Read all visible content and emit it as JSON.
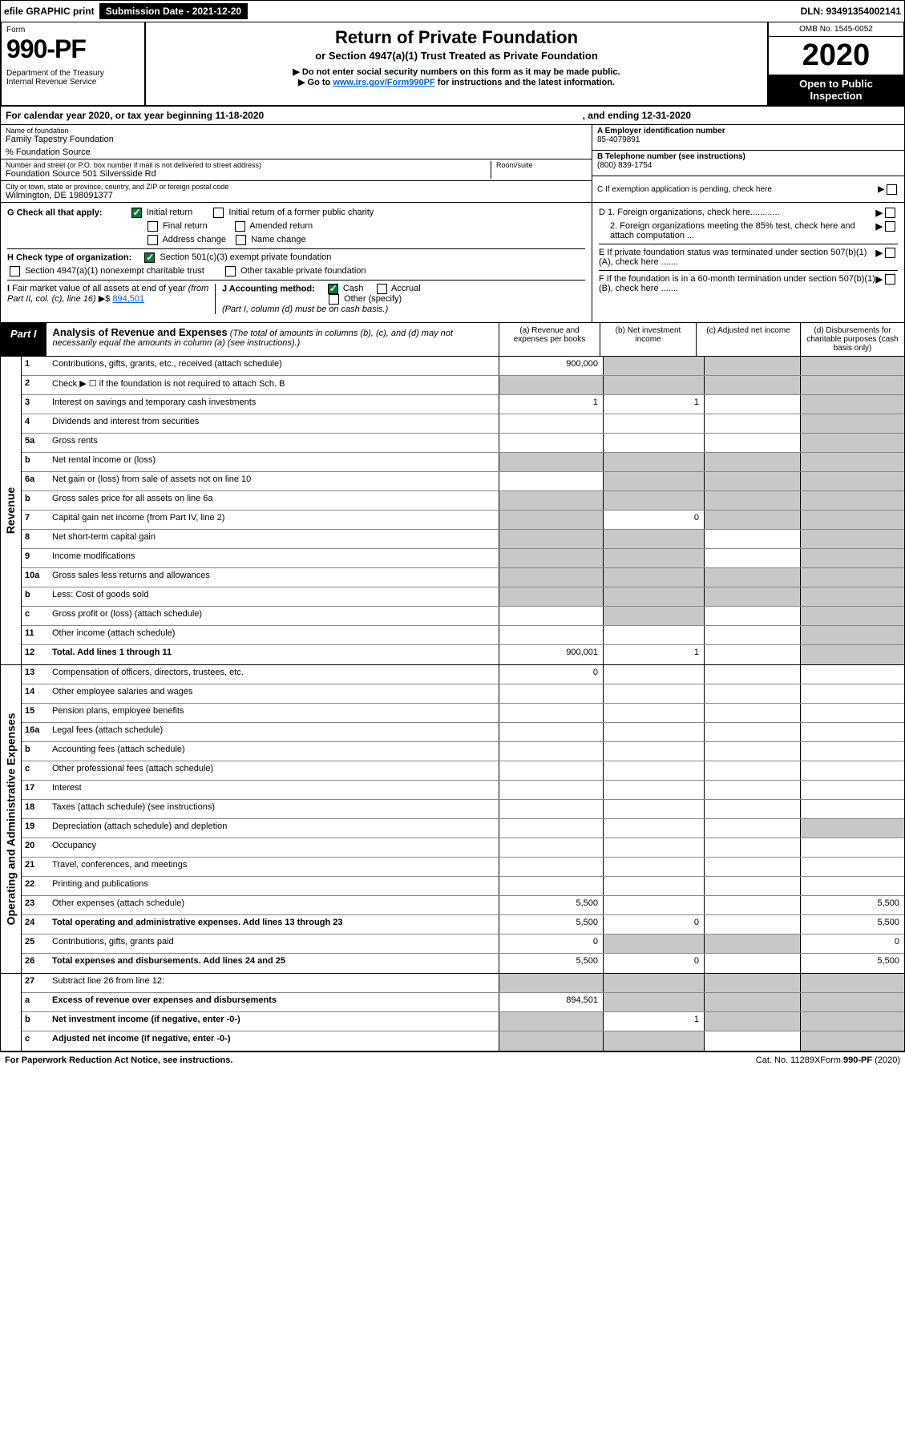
{
  "top": {
    "efile": "efile GRAPHIC print",
    "submission": "Submission Date - 2021-12-20",
    "dln": "DLN: 93491354002141"
  },
  "header": {
    "form_label": "Form",
    "form_num": "990-PF",
    "dept": "Department of the Treasury\nInternal Revenue Service",
    "title": "Return of Private Foundation",
    "subtitle": "or Section 4947(a)(1) Trust Treated as Private Foundation",
    "note1": "▶ Do not enter social security numbers on this form as it may be made public.",
    "note2_pre": "▶ Go to ",
    "note2_link": "www.irs.gov/Form990PF",
    "note2_post": " for instructions and the latest information.",
    "omb": "OMB No. 1545-0052",
    "year": "2020",
    "open": "Open to Public Inspection"
  },
  "year_line": {
    "text": "For calendar year 2020, or tax year beginning 11-18-2020",
    "ending": ", and ending 12-31-2020"
  },
  "info": {
    "name_label": "Name of foundation",
    "name": "Family Tapestry Foundation",
    "co": "% Foundation Source",
    "addr_label": "Number and street (or P.O. box number if mail is not delivered to street address)",
    "addr": "Foundation Source 501 Silversside Rd",
    "room_label": "Room/suite",
    "city_label": "City or town, state or province, country, and ZIP or foreign postal code",
    "city": "Wilmington, DE  198091377",
    "ein_label": "A Employer identification number",
    "ein": "85-4079891",
    "phone_label": "B Telephone number (see instructions)",
    "phone": "(800) 839-1754",
    "c_label": "C If exemption application is pending, check here"
  },
  "checks": {
    "g_label": "G Check all that apply:",
    "g_opts": [
      "Initial return",
      "Initial return of a former public charity",
      "Final return",
      "Amended return",
      "Address change",
      "Name change"
    ],
    "g_checked": [
      true,
      false,
      false,
      false,
      false,
      false
    ],
    "h_label": "H Check type of organization:",
    "h_opts": [
      "Section 501(c)(3) exempt private foundation",
      "Section 4947(a)(1) nonexempt charitable trust",
      "Other taxable private foundation"
    ],
    "h_checked": [
      true,
      false,
      false
    ],
    "i_label": "I Fair market value of all assets at end of year (from Part II, col. (c), line 16) ▶$",
    "i_val": "894,501",
    "j_label": "J Accounting method:",
    "j_opts": [
      "Cash",
      "Accrual",
      "Other (specify)"
    ],
    "j_checked": [
      true,
      false,
      false
    ],
    "j_note": "(Part I, column (d) must be on cash basis.)",
    "d1": "D 1. Foreign organizations, check here............",
    "d2": "2. Foreign organizations meeting the 85% test, check here and attach computation ...",
    "e": "E  If private foundation status was terminated under section 507(b)(1)(A), check here .......",
    "f": "F  If the foundation is in a 60-month termination under section 507(b)(1)(B), check here .......",
    "arrow": "▶"
  },
  "part1": {
    "badge": "Part I",
    "title": "Analysis of Revenue and Expenses",
    "title_note": " (The total of amounts in columns (b), (c), and (d) may not necessarily equal the amounts in column (a) (see instructions).)",
    "cols": [
      "(a)   Revenue and expenses per books",
      "(b)   Net investment income",
      "(c)   Adjusted net income",
      "(d)   Disbursements for charitable purposes (cash basis only)"
    ]
  },
  "revenue_rows": [
    {
      "n": "1",
      "t": "Contributions, gifts, grants, etc., received (attach schedule)",
      "a": "900,000",
      "b": "",
      "c": "",
      "d": "",
      "grey": [
        false,
        true,
        true,
        true
      ]
    },
    {
      "n": "2",
      "t": "Check ▶ ☐ if the foundation is not required to attach Sch. B",
      "a": "",
      "b": "",
      "c": "",
      "d": "",
      "grey": [
        true,
        true,
        true,
        true
      ],
      "bold_not": true
    },
    {
      "n": "3",
      "t": "Interest on savings and temporary cash investments",
      "a": "1",
      "b": "1",
      "c": "",
      "d": "",
      "grey": [
        false,
        false,
        false,
        true
      ]
    },
    {
      "n": "4",
      "t": "Dividends and interest from securities",
      "a": "",
      "b": "",
      "c": "",
      "d": "",
      "grey": [
        false,
        false,
        false,
        true
      ]
    },
    {
      "n": "5a",
      "t": "Gross rents",
      "a": "",
      "b": "",
      "c": "",
      "d": "",
      "grey": [
        false,
        false,
        false,
        true
      ]
    },
    {
      "n": "b",
      "t": "Net rental income or (loss)",
      "a": "",
      "b": "",
      "c": "",
      "d": "",
      "grey": [
        true,
        true,
        true,
        true
      ]
    },
    {
      "n": "6a",
      "t": "Net gain or (loss) from sale of assets not on line 10",
      "a": "",
      "b": "",
      "c": "",
      "d": "",
      "grey": [
        false,
        true,
        true,
        true
      ]
    },
    {
      "n": "b",
      "t": "Gross sales price for all assets on line 6a",
      "a": "",
      "b": "",
      "c": "",
      "d": "",
      "grey": [
        true,
        true,
        true,
        true
      ]
    },
    {
      "n": "7",
      "t": "Capital gain net income (from Part IV, line 2)",
      "a": "",
      "b": "0",
      "c": "",
      "d": "",
      "grey": [
        true,
        false,
        true,
        true
      ]
    },
    {
      "n": "8",
      "t": "Net short-term capital gain",
      "a": "",
      "b": "",
      "c": "",
      "d": "",
      "grey": [
        true,
        true,
        false,
        true
      ]
    },
    {
      "n": "9",
      "t": "Income modifications",
      "a": "",
      "b": "",
      "c": "",
      "d": "",
      "grey": [
        true,
        true,
        false,
        true
      ]
    },
    {
      "n": "10a",
      "t": "Gross sales less returns and allowances",
      "a": "",
      "b": "",
      "c": "",
      "d": "",
      "grey": [
        true,
        true,
        true,
        true
      ]
    },
    {
      "n": "b",
      "t": "Less: Cost of goods sold",
      "a": "",
      "b": "",
      "c": "",
      "d": "",
      "grey": [
        true,
        true,
        true,
        true
      ]
    },
    {
      "n": "c",
      "t": "Gross profit or (loss) (attach schedule)",
      "a": "",
      "b": "",
      "c": "",
      "d": "",
      "grey": [
        false,
        true,
        false,
        true
      ]
    },
    {
      "n": "11",
      "t": "Other income (attach schedule)",
      "a": "",
      "b": "",
      "c": "",
      "d": "",
      "grey": [
        false,
        false,
        false,
        true
      ]
    },
    {
      "n": "12",
      "t": "Total. Add lines 1 through 11",
      "a": "900,001",
      "b": "1",
      "c": "",
      "d": "",
      "grey": [
        false,
        false,
        false,
        true
      ],
      "bold": true
    }
  ],
  "expense_rows": [
    {
      "n": "13",
      "t": "Compensation of officers, directors, trustees, etc.",
      "a": "0",
      "b": "",
      "c": "",
      "d": ""
    },
    {
      "n": "14",
      "t": "Other employee salaries and wages",
      "a": "",
      "b": "",
      "c": "",
      "d": ""
    },
    {
      "n": "15",
      "t": "Pension plans, employee benefits",
      "a": "",
      "b": "",
      "c": "",
      "d": ""
    },
    {
      "n": "16a",
      "t": "Legal fees (attach schedule)",
      "a": "",
      "b": "",
      "c": "",
      "d": ""
    },
    {
      "n": "b",
      "t": "Accounting fees (attach schedule)",
      "a": "",
      "b": "",
      "c": "",
      "d": ""
    },
    {
      "n": "c",
      "t": "Other professional fees (attach schedule)",
      "a": "",
      "b": "",
      "c": "",
      "d": ""
    },
    {
      "n": "17",
      "t": "Interest",
      "a": "",
      "b": "",
      "c": "",
      "d": ""
    },
    {
      "n": "18",
      "t": "Taxes (attach schedule) (see instructions)",
      "a": "",
      "b": "",
      "c": "",
      "d": ""
    },
    {
      "n": "19",
      "t": "Depreciation (attach schedule) and depletion",
      "a": "",
      "b": "",
      "c": "",
      "d": "",
      "grey": [
        false,
        false,
        false,
        true
      ]
    },
    {
      "n": "20",
      "t": "Occupancy",
      "a": "",
      "b": "",
      "c": "",
      "d": ""
    },
    {
      "n": "21",
      "t": "Travel, conferences, and meetings",
      "a": "",
      "b": "",
      "c": "",
      "d": ""
    },
    {
      "n": "22",
      "t": "Printing and publications",
      "a": "",
      "b": "",
      "c": "",
      "d": ""
    },
    {
      "n": "23",
      "t": "Other expenses (attach schedule)",
      "a": "5,500",
      "b": "",
      "c": "",
      "d": "5,500"
    },
    {
      "n": "24",
      "t": "Total operating and administrative expenses. Add lines 13 through 23",
      "a": "5,500",
      "b": "0",
      "c": "",
      "d": "5,500",
      "bold": true
    },
    {
      "n": "25",
      "t": "Contributions, gifts, grants paid",
      "a": "0",
      "b": "",
      "c": "",
      "d": "0",
      "grey": [
        false,
        true,
        true,
        false
      ]
    },
    {
      "n": "26",
      "t": "Total expenses and disbursements. Add lines 24 and 25",
      "a": "5,500",
      "b": "0",
      "c": "",
      "d": "5,500",
      "bold": true
    }
  ],
  "bottom_rows": [
    {
      "n": "27",
      "t": "Subtract line 26 from line 12:",
      "a": "",
      "b": "",
      "c": "",
      "d": "",
      "grey": [
        true,
        true,
        true,
        true
      ]
    },
    {
      "n": "a",
      "t": "Excess of revenue over expenses and disbursements",
      "a": "894,501",
      "b": "",
      "c": "",
      "d": "",
      "grey": [
        false,
        true,
        true,
        true
      ],
      "bold": true
    },
    {
      "n": "b",
      "t": "Net investment income (if negative, enter -0-)",
      "a": "",
      "b": "1",
      "c": "",
      "d": "",
      "grey": [
        true,
        false,
        true,
        true
      ],
      "bold": true
    },
    {
      "n": "c",
      "t": "Adjusted net income (if negative, enter -0-)",
      "a": "",
      "b": "",
      "c": "",
      "d": "",
      "grey": [
        true,
        true,
        false,
        true
      ],
      "bold": true
    }
  ],
  "footer": {
    "left": "For Paperwork Reduction Act Notice, see instructions.",
    "mid": "Cat. No. 11289X",
    "right": "Form 990-PF (2020)"
  },
  "side_labels": {
    "revenue": "Revenue",
    "expenses": "Operating and Administrative Expenses"
  },
  "colors": {
    "grey_cell": "#c8c8c8",
    "check_green": "#0a7a3a",
    "link": "#0066cc"
  }
}
